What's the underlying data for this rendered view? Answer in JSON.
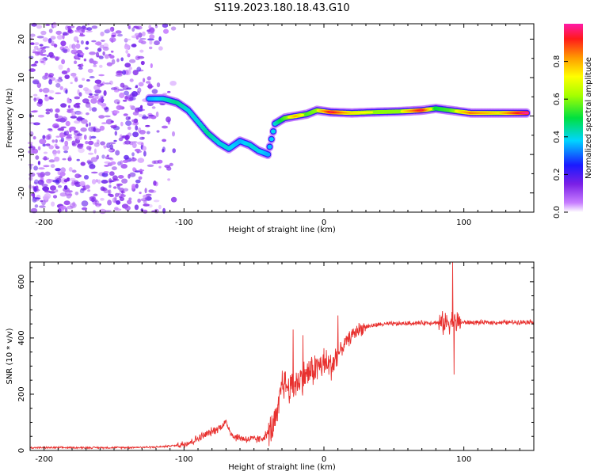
{
  "title": "S119.2023.180.18.43.G10",
  "chart_data": [
    {
      "type": "heatmap",
      "xlabel": "Height of straight line (km)",
      "ylabel": "Frequency (Hz)",
      "xlim": [
        -210,
        150
      ],
      "ylim": [
        -25,
        24
      ],
      "xticks": [
        -200,
        -100,
        0,
        100
      ],
      "yticks": [
        -20,
        -10,
        0,
        10,
        20
      ],
      "colorbar": {
        "label": "Normalized spectral amplitude",
        "range": [
          0,
          1
        ],
        "ticks": [
          "0.0",
          "0.2",
          "0.4",
          "0.6",
          "0.8"
        ]
      },
      "noise_region_x": [
        -210,
        -105
      ],
      "ridge": [
        {
          "x": -125,
          "y": 4.5,
          "a": 0.35
        },
        {
          "x": -115,
          "y": 4.5,
          "a": 0.4
        },
        {
          "x": -105,
          "y": 3.5,
          "a": 0.45
        },
        {
          "x": -97,
          "y": 1.5,
          "a": 0.4
        },
        {
          "x": -90,
          "y": -1.5,
          "a": 0.4
        },
        {
          "x": -83,
          "y": -4.5,
          "a": 0.45
        },
        {
          "x": -75,
          "y": -7,
          "a": 0.4
        },
        {
          "x": -68,
          "y": -8.5,
          "a": 0.4
        },
        {
          "x": -60,
          "y": -6.5,
          "a": 0.35
        },
        {
          "x": -53,
          "y": -7.5,
          "a": 0.4
        },
        {
          "x": -47,
          "y": -9,
          "a": 0.4
        },
        {
          "x": -40,
          "y": -10,
          "a": 0.35
        },
        {
          "x": -35,
          "y": -2,
          "a": 0.4
        },
        {
          "x": -28,
          "y": -0.5,
          "a": 0.55
        },
        {
          "x": -20,
          "y": 0,
          "a": 0.7
        },
        {
          "x": -12,
          "y": 0.5,
          "a": 0.55
        },
        {
          "x": -5,
          "y": 1.5,
          "a": 0.6
        },
        {
          "x": 5,
          "y": 1,
          "a": 0.85
        },
        {
          "x": 20,
          "y": 0.8,
          "a": 0.65
        },
        {
          "x": 35,
          "y": 1,
          "a": 0.6
        },
        {
          "x": 55,
          "y": 1.2,
          "a": 0.6
        },
        {
          "x": 70,
          "y": 1.5,
          "a": 0.85
        },
        {
          "x": 80,
          "y": 2,
          "a": 0.5
        },
        {
          "x": 90,
          "y": 1.5,
          "a": 0.55
        },
        {
          "x": 105,
          "y": 0.8,
          "a": 0.75
        },
        {
          "x": 125,
          "y": 0.8,
          "a": 0.65
        },
        {
          "x": 145,
          "y": 0.8,
          "a": 0.9
        }
      ]
    },
    {
      "type": "line",
      "xlabel": "Height of straight line (km)",
      "ylabel": "SNR (10 * v/v)",
      "xlim": [
        -210,
        150
      ],
      "ylim": [
        0,
        670
      ],
      "xticks": [
        -200,
        -100,
        0,
        100
      ],
      "yticks": [
        0,
        200,
        400,
        600
      ],
      "color": "#e8312f",
      "series": [
        {
          "name": "SNR",
          "points": [
            [
              -210,
              10
            ],
            [
              -150,
              10
            ],
            [
              -120,
              12
            ],
            [
              -105,
              18
            ],
            [
              -95,
              30
            ],
            [
              -85,
              55
            ],
            [
              -75,
              80
            ],
            [
              -70,
              100
            ],
            [
              -65,
              50
            ],
            [
              -55,
              40
            ],
            [
              -45,
              40
            ],
            [
              -38,
              70
            ],
            [
              -33,
              120
            ],
            [
              -30,
              250
            ],
            [
              -25,
              220
            ],
            [
              -20,
              240
            ],
            [
              -10,
              280
            ],
            [
              0,
              310
            ],
            [
              5,
              300
            ],
            [
              10,
              340
            ],
            [
              15,
              380
            ],
            [
              20,
              410
            ],
            [
              25,
              430
            ],
            [
              30,
              440
            ],
            [
              40,
              448
            ],
            [
              60,
              452
            ],
            [
              80,
              455
            ],
            [
              85,
              450
            ],
            [
              90,
              460
            ],
            [
              95,
              455
            ],
            [
              110,
              455
            ],
            [
              130,
              455
            ],
            [
              150,
              458
            ]
          ],
          "spikes": [
            {
              "x": -22,
              "y": 430
            },
            {
              "x": -15,
              "y": 410
            },
            {
              "x": 10,
              "y": 480
            },
            {
              "x": 92,
              "y": 670
            },
            {
              "x": 93,
              "y": 270
            }
          ]
        }
      ]
    }
  ]
}
